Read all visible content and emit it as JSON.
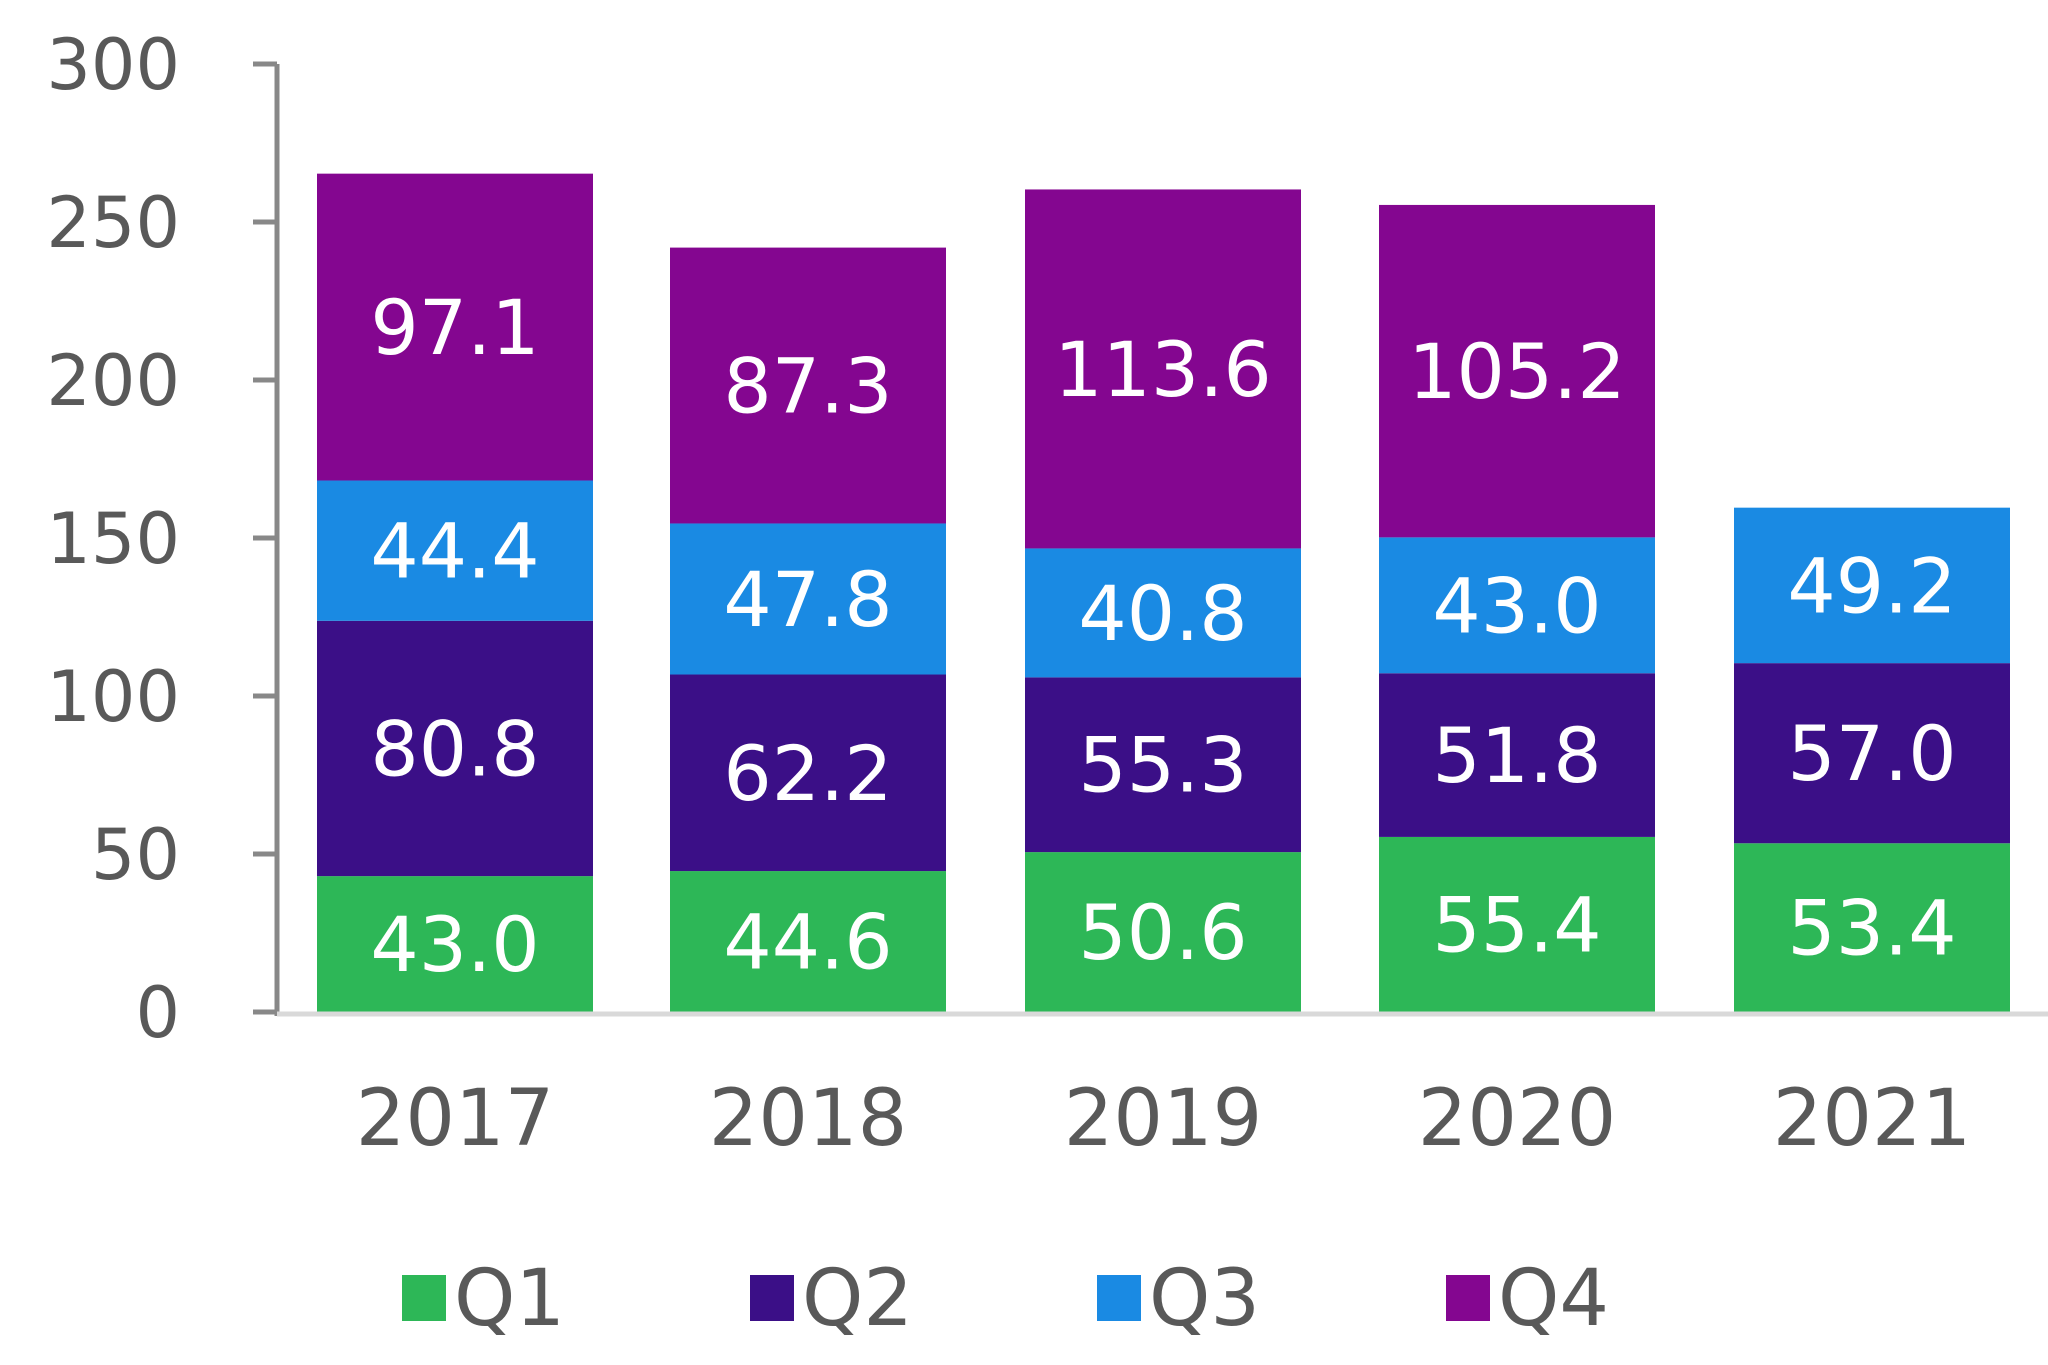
{
  "chart_data": {
    "type": "bar",
    "stacked": true,
    "title": "",
    "xlabel": "",
    "ylabel": "",
    "categories": [
      "2017",
      "2018",
      "2019",
      "2020",
      "2021"
    ],
    "ylim": [
      0,
      300
    ],
    "yticks": [
      0,
      50,
      100,
      150,
      200,
      250,
      300
    ],
    "grid": false,
    "legend_position": "bottom",
    "series": [
      {
        "name": "Q1",
        "color": "#2DB757",
        "values": [
          43.0,
          44.6,
          50.6,
          55.4,
          53.4
        ],
        "labels": [
          "43.0",
          "44.6",
          "50.6",
          "55.4",
          "53.4"
        ]
      },
      {
        "name": "Q2",
        "color": "#3B0F87",
        "values": [
          80.8,
          62.2,
          55.3,
          51.8,
          57.0
        ],
        "labels": [
          "80.8",
          "62.2",
          "55.3",
          "51.8",
          "57.0"
        ]
      },
      {
        "name": "Q3",
        "color": "#1A8AE3",
        "values": [
          44.4,
          47.8,
          40.8,
          43.0,
          49.2
        ],
        "labels": [
          "44.4",
          "47.8",
          "40.8",
          "43.0",
          "49.2"
        ]
      },
      {
        "name": "Q4",
        "color": "#840690",
        "values": [
          97.1,
          87.3,
          113.6,
          105.2,
          null
        ],
        "labels": [
          "97.1",
          "87.3",
          "113.6",
          "105.2",
          null
        ]
      }
    ],
    "axis_color": "#888888",
    "baseline_color": "#D9D9D9",
    "text_color": "#595959"
  }
}
